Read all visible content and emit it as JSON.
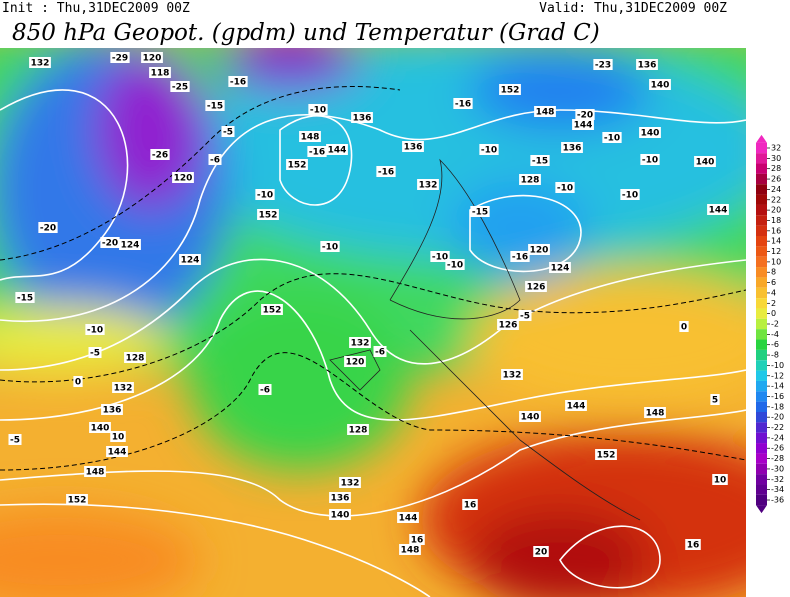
{
  "header": {
    "init": "Init : Thu,31DEC2009 00Z",
    "valid": "Valid: Thu,31DEC2009 00Z",
    "title": "850 hPa Geopot. (gpdm) und Temperatur (Grad C)"
  },
  "colorbar": {
    "ticks": [
      32,
      30,
      28,
      26,
      24,
      22,
      20,
      18,
      16,
      14,
      12,
      10,
      8,
      6,
      4,
      2,
      0,
      -2,
      -4,
      -6,
      -8,
      -10,
      -12,
      -14,
      -16,
      -18,
      -20,
      -22,
      -24,
      -26,
      -28,
      -30,
      -32,
      -34,
      -36
    ],
    "colors": [
      "#f028c0",
      "#e01898",
      "#c80070",
      "#a80040",
      "#900010",
      "#a00808",
      "#b41010",
      "#c42010",
      "#d43010",
      "#e44410",
      "#ec5814",
      "#f47020",
      "#f88c24",
      "#f8a828",
      "#f8c030",
      "#f8d838",
      "#e8ec40",
      "#b8f040",
      "#70e440",
      "#28d440",
      "#20d080",
      "#20d0b8",
      "#20c8e8",
      "#20a8f0",
      "#2088f0",
      "#2068e8",
      "#3048d8",
      "#5028d0",
      "#7010d0",
      "#9000d0",
      "#a800c8",
      "#9000b0",
      "#7000a0",
      "#600090",
      "#500080"
    ]
  },
  "contour_labels": [
    132,
    -29,
    120,
    118,
    -25,
    -16,
    -15,
    -5,
    -6,
    -26,
    120,
    -10,
    152,
    -20,
    -20,
    124,
    124,
    -15,
    -10,
    -5,
    128,
    0,
    132,
    136,
    140,
    10,
    144,
    -5,
    148,
    152,
    152,
    -6,
    128,
    132,
    136,
    140,
    144,
    148,
    16,
    16,
    20,
    16,
    152,
    10,
    148,
    140,
    144,
    132,
    5,
    0,
    126,
    120,
    -16,
    124,
    -15,
    -10,
    -10,
    126,
    -5,
    -10,
    -10,
    136,
    148,
    152,
    -16,
    144,
    132,
    -16,
    136,
    152,
    -16,
    140,
    136,
    -23,
    140,
    -10,
    140,
    -10,
    144,
    128,
    -10,
    -15,
    148,
    -20,
    144,
    136,
    -10,
    -10,
    132,
    120,
    -6
  ]
}
